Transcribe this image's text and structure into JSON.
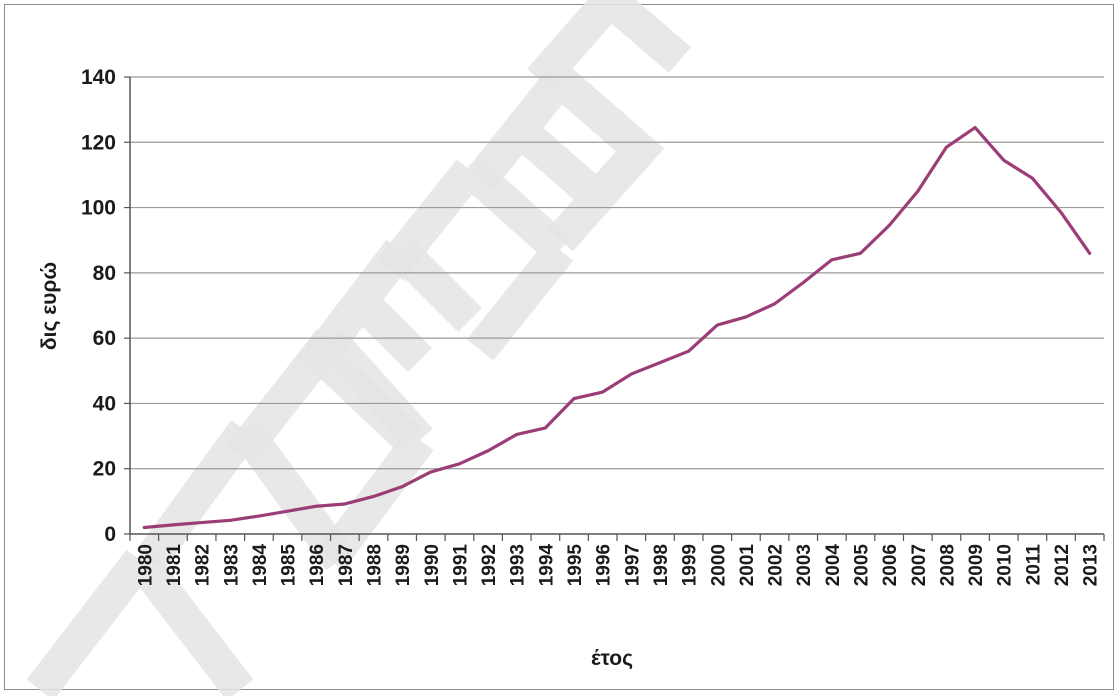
{
  "chart_data": {
    "type": "line",
    "title": "",
    "xlabel": "έτος",
    "ylabel": "δις ευρώ",
    "ylim": [
      0,
      140
    ],
    "yticks": [
      0,
      20,
      40,
      60,
      80,
      100,
      120,
      140
    ],
    "grid": true,
    "legend": "none",
    "categories": [
      "1980",
      "1981",
      "1982",
      "1983",
      "1984",
      "1985",
      "1986",
      "1987",
      "1988",
      "1989",
      "1990",
      "1991",
      "1992",
      "1993",
      "1994",
      "1995",
      "1996",
      "1997",
      "1998",
      "1999",
      "2000",
      "2001",
      "2002",
      "2003",
      "2004",
      "2005",
      "2006",
      "2007",
      "2008",
      "2009",
      "2010",
      "2011",
      "2012",
      "2013"
    ],
    "series": [
      {
        "color": "#9b3d77",
        "values": [
          2,
          2.8,
          3.5,
          4.2,
          5.5,
          7,
          8.5,
          9.2,
          11.5,
          14.5,
          19,
          21.5,
          25.5,
          30.5,
          32.5,
          41.5,
          43.5,
          49,
          52.5,
          56,
          64,
          66.5,
          70.5,
          77,
          84,
          86,
          94.5,
          105,
          118.5,
          124.5,
          114.5,
          109,
          98.5,
          86
        ]
      }
    ]
  },
  "watermark": {
    "color": "#e4e4e4"
  }
}
